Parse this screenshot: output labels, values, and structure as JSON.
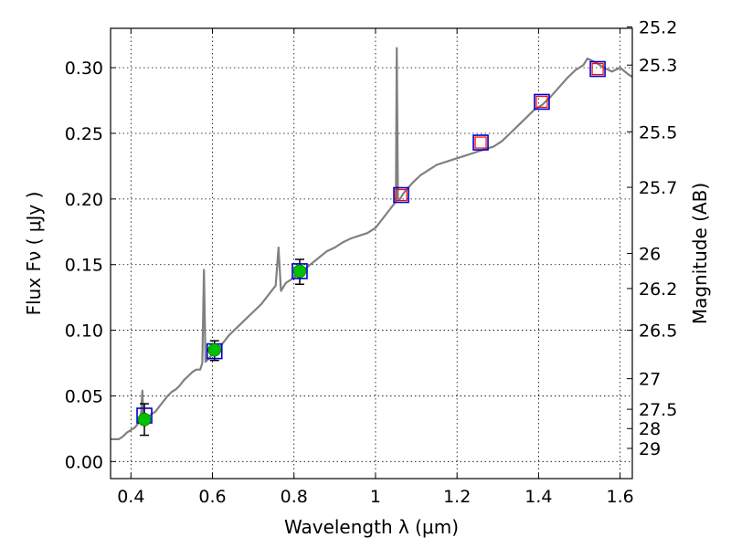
{
  "chart_data": {
    "type": "line",
    "xlabel": "Wavelength  λ (μm)",
    "ylabel": "Flux  Fν  ( μJy )",
    "y2label": "Magnitude (AB)",
    "xlim": [
      0.35,
      1.63
    ],
    "ylim": [
      -0.013,
      0.33
    ],
    "grid": true,
    "x_ticks": [
      0.4,
      0.6,
      0.8,
      1.0,
      1.2,
      1.4,
      1.6
    ],
    "x_tick_labels": [
      "0.4",
      "0.6",
      "0.8",
      "1",
      "1.2",
      "1.4",
      "1.6"
    ],
    "y_ticks": [
      0.0,
      0.05,
      0.1,
      0.15,
      0.2,
      0.25,
      0.3
    ],
    "y_tick_labels": [
      "0.00",
      "0.05",
      "0.10",
      "0.15",
      "0.20",
      "0.25",
      "0.30"
    ],
    "y2_ticks": [
      {
        "label": "25.2",
        "flux": 0.3311
      },
      {
        "label": "25.3",
        "flux": 0.302
      },
      {
        "label": "25.5",
        "flux": 0.2512
      },
      {
        "label": "25.7",
        "flux": 0.2089
      },
      {
        "label": "26",
        "flux": 0.1585
      },
      {
        "label": "26.2",
        "flux": 0.1318
      },
      {
        "label": "26.5",
        "flux": 0.1
      },
      {
        "label": "27",
        "flux": 0.0631
      },
      {
        "label": "27.5",
        "flux": 0.0398
      },
      {
        "label": "28",
        "flux": 0.0251
      },
      {
        "label": "29",
        "flux": 0.01
      }
    ],
    "series": [
      {
        "type": "spectrum",
        "color": "#808080",
        "points": [
          [
            0.35,
            0.017
          ],
          [
            0.36,
            0.017
          ],
          [
            0.37,
            0.017
          ],
          [
            0.38,
            0.019
          ],
          [
            0.39,
            0.022
          ],
          [
            0.4,
            0.024
          ],
          [
            0.41,
            0.026
          ],
          [
            0.42,
            0.03
          ],
          [
            0.425,
            0.037
          ],
          [
            0.428,
            0.054
          ],
          [
            0.431,
            0.03
          ],
          [
            0.44,
            0.033
          ],
          [
            0.45,
            0.036
          ],
          [
            0.46,
            0.038
          ],
          [
            0.47,
            0.042
          ],
          [
            0.48,
            0.046
          ],
          [
            0.49,
            0.05
          ],
          [
            0.5,
            0.053
          ],
          [
            0.51,
            0.055
          ],
          [
            0.52,
            0.058
          ],
          [
            0.53,
            0.062
          ],
          [
            0.54,
            0.065
          ],
          [
            0.55,
            0.068
          ],
          [
            0.56,
            0.07
          ],
          [
            0.57,
            0.07
          ],
          [
            0.575,
            0.075
          ],
          [
            0.579,
            0.146
          ],
          [
            0.583,
            0.076
          ],
          [
            0.59,
            0.078
          ],
          [
            0.6,
            0.082
          ],
          [
            0.62,
            0.088
          ],
          [
            0.64,
            0.096
          ],
          [
            0.66,
            0.102
          ],
          [
            0.68,
            0.108
          ],
          [
            0.7,
            0.114
          ],
          [
            0.72,
            0.12
          ],
          [
            0.74,
            0.128
          ],
          [
            0.755,
            0.134
          ],
          [
            0.762,
            0.163
          ],
          [
            0.768,
            0.13
          ],
          [
            0.78,
            0.136
          ],
          [
            0.8,
            0.14
          ],
          [
            0.82,
            0.145
          ],
          [
            0.84,
            0.15
          ],
          [
            0.86,
            0.155
          ],
          [
            0.88,
            0.16
          ],
          [
            0.9,
            0.163
          ],
          [
            0.92,
            0.167
          ],
          [
            0.94,
            0.17
          ],
          [
            0.96,
            0.172
          ],
          [
            0.98,
            0.174
          ],
          [
            1.0,
            0.178
          ],
          [
            1.02,
            0.186
          ],
          [
            1.04,
            0.194
          ],
          [
            1.05,
            0.198
          ],
          [
            1.052,
            0.315
          ],
          [
            1.055,
            0.2
          ],
          [
            1.06,
            0.2
          ],
          [
            1.07,
            0.205
          ],
          [
            1.09,
            0.212
          ],
          [
            1.11,
            0.218
          ],
          [
            1.13,
            0.222
          ],
          [
            1.15,
            0.226
          ],
          [
            1.17,
            0.228
          ],
          [
            1.19,
            0.23
          ],
          [
            1.21,
            0.232
          ],
          [
            1.23,
            0.234
          ],
          [
            1.25,
            0.236
          ],
          [
            1.27,
            0.238
          ],
          [
            1.29,
            0.24
          ],
          [
            1.31,
            0.244
          ],
          [
            1.33,
            0.25
          ],
          [
            1.35,
            0.256
          ],
          [
            1.37,
            0.262
          ],
          [
            1.39,
            0.268
          ],
          [
            1.41,
            0.272
          ],
          [
            1.43,
            0.278
          ],
          [
            1.45,
            0.285
          ],
          [
            1.47,
            0.292
          ],
          [
            1.49,
            0.298
          ],
          [
            1.51,
            0.302
          ],
          [
            1.52,
            0.307
          ],
          [
            1.54,
            0.304
          ],
          [
            1.56,
            0.3
          ],
          [
            1.58,
            0.297
          ],
          [
            1.6,
            0.3
          ],
          [
            1.62,
            0.295
          ],
          [
            1.63,
            0.293
          ]
        ]
      },
      {
        "name": "",
        "type": "model_box",
        "color": "#0000cc",
        "points": [
          [
            0.433,
            0.035
          ],
          [
            0.605,
            0.084
          ],
          [
            0.814,
            0.145
          ],
          [
            1.063,
            0.203
          ],
          [
            1.258,
            0.243
          ],
          [
            1.408,
            0.274
          ],
          [
            1.545,
            0.299
          ]
        ]
      },
      {
        "type": "observed_circle",
        "color": "#00c000",
        "points": [
          [
            0.433,
            0.032
          ],
          [
            0.605,
            0.085
          ],
          [
            0.814,
            0.145
          ]
        ],
        "error_low": [
          0.02,
          0.077,
          0.135
        ],
        "error_high": [
          0.044,
          0.092,
          0.154
        ]
      },
      {
        "type": "limit_box",
        "color": "#ff0000",
        "points": [
          [
            1.063,
            0.203
          ],
          [
            1.258,
            0.243
          ],
          [
            1.408,
            0.274
          ],
          [
            1.545,
            0.299
          ]
        ]
      }
    ]
  }
}
